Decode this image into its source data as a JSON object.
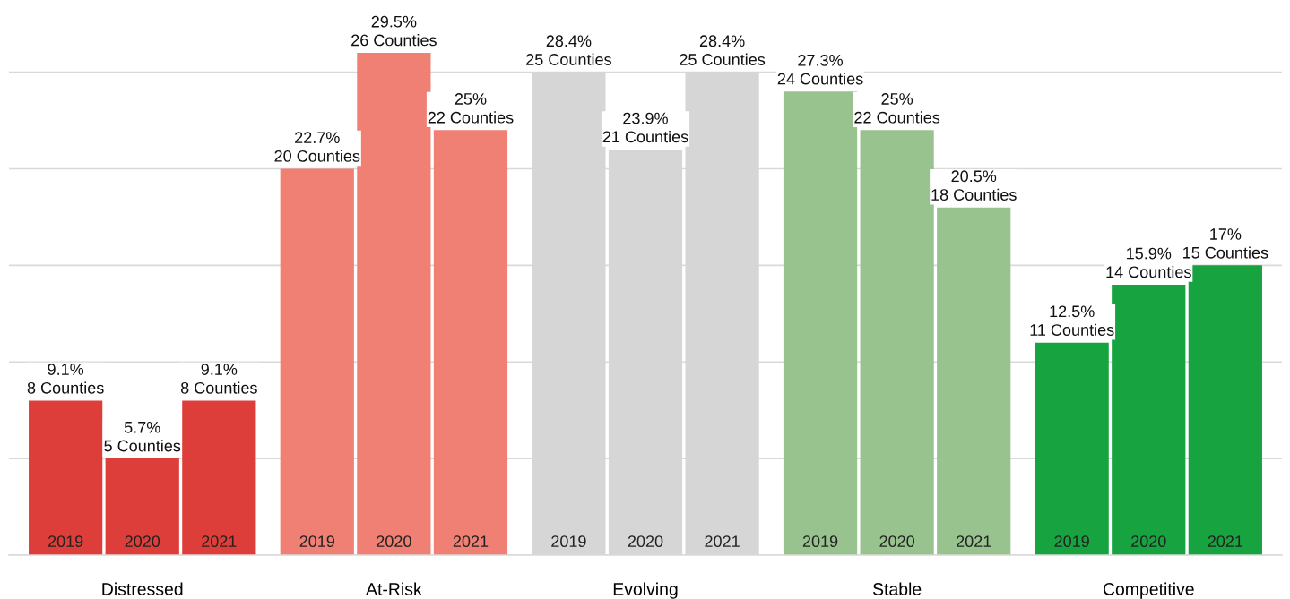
{
  "chart_data": {
    "type": "bar",
    "categories": [
      "Distressed",
      "At-Risk",
      "Evolving",
      "Stable",
      "Competitive"
    ],
    "series": [
      {
        "name": "2019",
        "colors": [
          "#de3e3a",
          "#f07f74",
          "#d6d6d6",
          "#98c38e",
          "#17a33f"
        ],
        "values": [
          8,
          20,
          25,
          24,
          11
        ],
        "value_labels": [
          "9.1%\n8 Counties",
          "22.7%\n20 Counties",
          "28.4%\n25 Counties",
          "27.3%\n24 Counties",
          "12.5%\n11 Counties"
        ]
      },
      {
        "name": "2020",
        "colors": [
          "#de3e3a",
          "#f07f74",
          "#d6d6d6",
          "#98c38e",
          "#17a33f"
        ],
        "values": [
          5,
          26,
          21,
          22,
          14
        ],
        "value_labels": [
          "5.7%\n5 Counties",
          "29.5%\n26 Counties",
          "23.9%\n21 Counties",
          "25%\n22 Counties",
          "15.9%\n14 Counties"
        ]
      },
      {
        "name": "2021",
        "colors": [
          "#de3e3a",
          "#f07f74",
          "#d6d6d6",
          "#98c38e",
          "#17a33f"
        ],
        "values": [
          8,
          22,
          25,
          18,
          15
        ],
        "value_labels": [
          "9.1%\n8 Counties",
          "25%\n22 Counties",
          "28.4%\n25 Counties",
          "20.5%\n18 Counties",
          "17%\n15 Counties"
        ]
      }
    ],
    "yticks": [
      {
        "value": 0,
        "label": null
      },
      {
        "value": 5,
        "label": null
      },
      {
        "value": 10,
        "label": null
      },
      {
        "value": 15,
        "label": null
      },
      {
        "value": 20,
        "label": null
      },
      {
        "value": 25,
        "label": null
      }
    ],
    "grid": "y",
    "tick_labels": "x",
    "legend": false
  }
}
